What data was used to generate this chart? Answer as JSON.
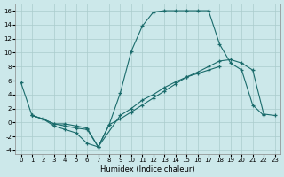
{
  "xlabel": "Humidex (Indice chaleur)",
  "background_color": "#cce8ea",
  "grid_color": "#aacccc",
  "line_color": "#1a6b6b",
  "xlim": [
    -0.5,
    23.5
  ],
  "ylim": [
    -4.5,
    17
  ],
  "xticks": [
    0,
    1,
    2,
    3,
    4,
    5,
    6,
    7,
    8,
    9,
    10,
    11,
    12,
    13,
    14,
    15,
    16,
    17,
    18,
    19,
    20,
    21,
    22,
    23
  ],
  "yticks": [
    -4,
    -2,
    0,
    2,
    4,
    6,
    8,
    10,
    12,
    14,
    16
  ],
  "curve1_x": [
    0,
    1,
    2,
    3,
    4,
    5,
    6,
    7,
    8,
    9,
    10,
    11,
    12,
    13,
    14,
    15,
    16,
    17,
    18,
    19,
    20,
    21,
    22
  ],
  "curve1_y": [
    5.7,
    1.0,
    0.5,
    -0.5,
    -1.0,
    -1.5,
    -3.0,
    -3.5,
    -0.3,
    4.2,
    10.2,
    13.8,
    15.8,
    16.0,
    16.0,
    16.0,
    16.0,
    16.0,
    11.2,
    8.5,
    7.5,
    2.5,
    1.0
  ],
  "curve2_x": [
    1,
    2,
    3,
    4,
    5,
    6,
    7,
    8,
    9,
    10,
    11,
    12,
    13,
    14,
    15,
    16,
    17,
    18,
    19,
    20,
    21,
    22,
    23
  ],
  "curve2_y": [
    1.0,
    0.5,
    -0.2,
    -0.5,
    -0.8,
    -1.0,
    -3.5,
    -0.3,
    0.5,
    1.5,
    2.5,
    3.5,
    4.5,
    5.5,
    6.5,
    7.2,
    8.0,
    8.8,
    9.0,
    8.5,
    7.5,
    1.2,
    1.0
  ],
  "curve3_x": [
    1,
    2,
    3,
    4,
    5,
    6,
    7,
    9,
    10,
    11,
    12,
    13,
    14,
    15,
    16,
    17,
    18
  ],
  "curve3_y": [
    1.0,
    0.5,
    -0.2,
    -0.2,
    -0.5,
    -0.8,
    -3.5,
    1.0,
    2.0,
    3.2,
    4.0,
    5.0,
    5.8,
    6.5,
    7.0,
    7.5,
    8.0
  ]
}
